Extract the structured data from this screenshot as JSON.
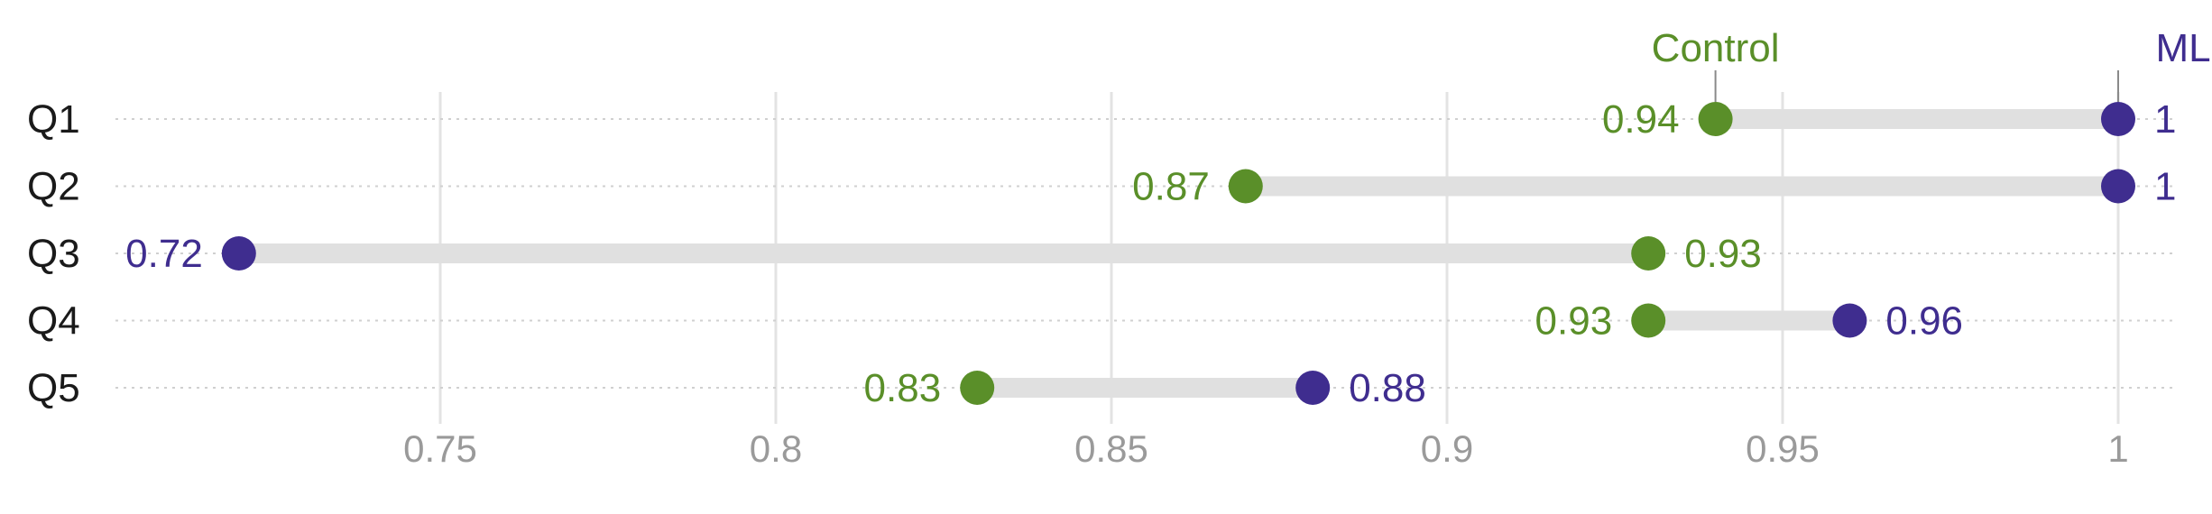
{
  "chart_data": {
    "type": "dumbbell",
    "categories": [
      "Q1",
      "Q2",
      "Q3",
      "Q4",
      "Q5"
    ],
    "series": [
      {
        "name": "Control",
        "values": [
          0.94,
          0.87,
          0.93,
          0.93,
          0.83
        ],
        "labels": [
          "0.94",
          "0.87",
          "0.93",
          "0.93",
          "0.83"
        ],
        "color": "#5a8f29"
      },
      {
        "name": "ML",
        "values": [
          1,
          1,
          0.72,
          0.96,
          0.88
        ],
        "labels": [
          "1",
          "1",
          "0.72",
          "0.96",
          "0.88"
        ],
        "color": "#3f2d8f"
      }
    ],
    "x_ticks": [
      0.75,
      0.8,
      0.85,
      0.9,
      0.95,
      1
    ],
    "x_tick_labels": [
      "0.75",
      "0.8",
      "0.85",
      "0.9",
      "0.95",
      "1"
    ],
    "xlim": [
      0.7,
      1.01
    ],
    "title": "",
    "xlabel": "",
    "ylabel": "",
    "grid": true,
    "legend": "direct labels above the first row",
    "colors": {
      "connector": "#e0e0e0",
      "row_guide": "#d0d0d0",
      "grid": "#e3e3e3",
      "tick_text": "#9a9a9a",
      "category_text": "#1a1a1a"
    }
  }
}
